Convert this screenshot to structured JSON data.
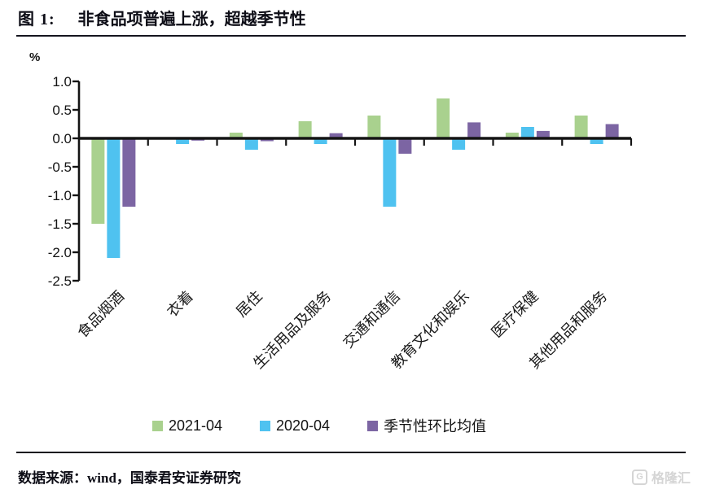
{
  "header": {
    "figure_label": "图 1:",
    "title": "非食品项普遍上涨，超越季节性"
  },
  "chart_data": {
    "type": "bar",
    "unit_label": "%",
    "categories": [
      "食品烟酒",
      "衣着",
      "居住",
      "生活用品及服务",
      "交通和通信",
      "教育文化和娱乐",
      "医疗保健",
      "其他用品和服务"
    ],
    "series": [
      {
        "name": "2021-04",
        "color": "#A9D18E",
        "values": [
          -1.5,
          0.0,
          0.1,
          0.3,
          0.4,
          0.7,
          0.1,
          0.4
        ]
      },
      {
        "name": "2020-04",
        "color": "#4FC2F0",
        "values": [
          -2.1,
          -0.1,
          -0.2,
          -0.1,
          -1.2,
          -0.2,
          0.2,
          -0.1
        ]
      },
      {
        "name": "季节性环比均值",
        "color": "#7C65A3",
        "values": [
          -1.2,
          -0.04,
          -0.05,
          0.09,
          -0.27,
          0.28,
          0.13,
          0.25
        ]
      }
    ],
    "ylim": [
      -2.5,
      1.0
    ],
    "ytick_step": 0.5,
    "yticks": [
      1.0,
      0.5,
      0.0,
      -0.5,
      -1.0,
      -1.5,
      -2.0,
      -2.5
    ],
    "grid": false,
    "legend_position": "bottom",
    "axis_color": "#141414"
  },
  "footer": {
    "source": "数据来源：wind，国泰君安证券研究",
    "watermark_text": "格隆汇",
    "watermark_icon": "G"
  }
}
